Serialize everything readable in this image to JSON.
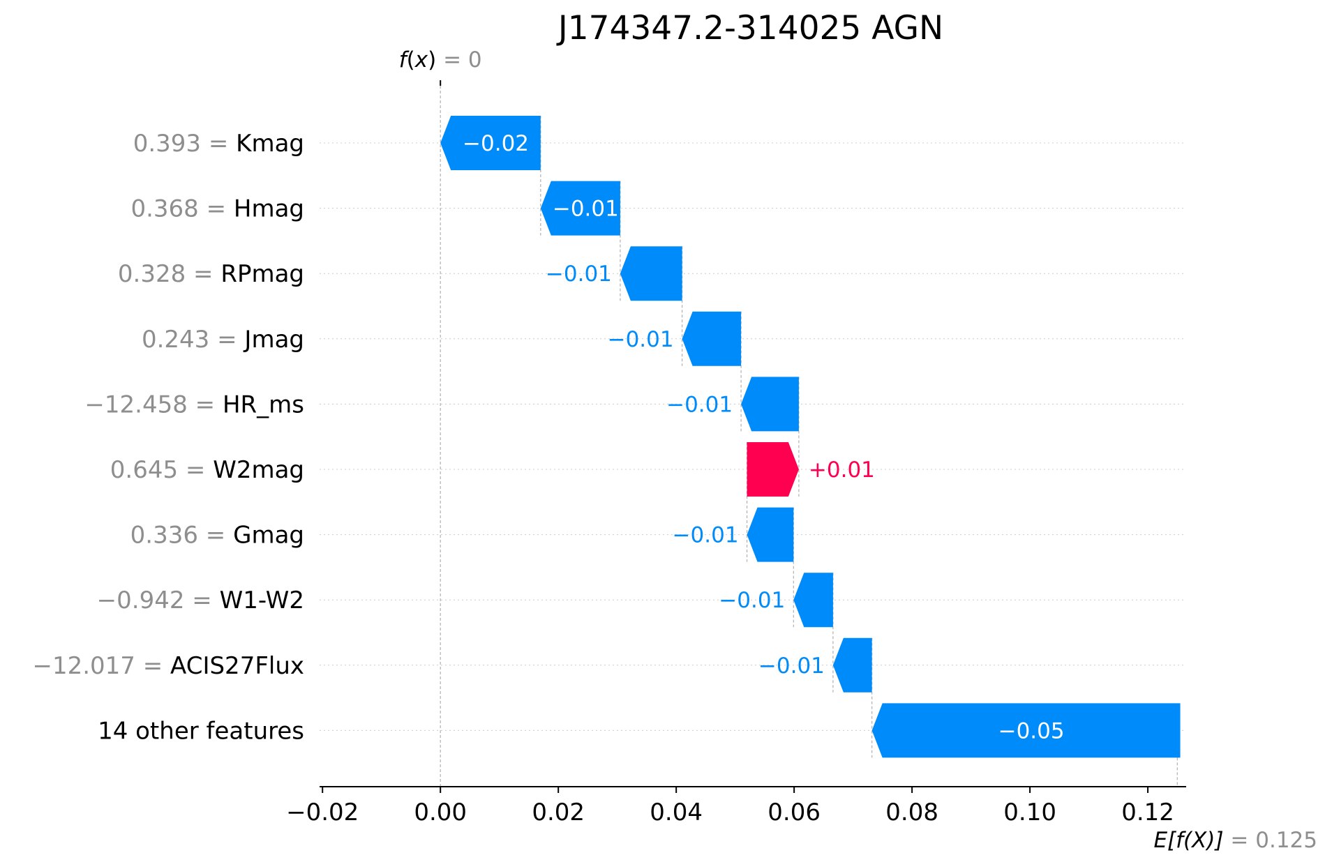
{
  "chart_data": {
    "type": "waterfall",
    "title": "J174347.2-314025 AGN",
    "fx": {
      "label_fn": "f",
      "label_var": "x",
      "value": "0",
      "x": 0.0
    },
    "base": {
      "label": "E[f(X)]",
      "value": "0.125",
      "x": 0.125
    },
    "xlim": [
      -0.0205,
      0.1265
    ],
    "xticks": [
      -0.02,
      0.0,
      0.02,
      0.04,
      0.06,
      0.08,
      0.1,
      0.12
    ],
    "xtick_labels": [
      "−0.02",
      "0.00",
      "0.02",
      "0.04",
      "0.06",
      "0.08",
      "0.10",
      "0.12"
    ],
    "features": [
      {
        "value": "0.393",
        "name": "Kmag",
        "contribution": -0.017,
        "label": "−0.02"
      },
      {
        "value": "0.368",
        "name": "Hmag",
        "contribution": -0.0135,
        "label": "−0.01"
      },
      {
        "value": "0.328",
        "name": "RPmag",
        "contribution": -0.0105,
        "label": "−0.01"
      },
      {
        "value": "0.243",
        "name": "Jmag",
        "contribution": -0.01,
        "label": "−0.01"
      },
      {
        "value": "−12.458",
        "name": "HR_ms",
        "contribution": -0.0098,
        "label": "−0.01"
      },
      {
        "value": "0.645",
        "name": "W2mag",
        "contribution": 0.0088,
        "label": "+0.01"
      },
      {
        "value": "0.336",
        "name": "Gmag",
        "contribution": -0.0079,
        "label": "−0.01"
      },
      {
        "value": "−0.942",
        "name": "W1-W2",
        "contribution": -0.0067,
        "label": "−0.01"
      },
      {
        "value": "−12.017",
        "name": "ACIS27Flux",
        "contribution": -0.0066,
        "label": "−0.01"
      },
      {
        "value": "",
        "name": "14 other features",
        "contribution": -0.0523,
        "label": "−0.05"
      }
    ],
    "colors": {
      "negative": "#008bfb",
      "positive": "#ff0051"
    }
  }
}
